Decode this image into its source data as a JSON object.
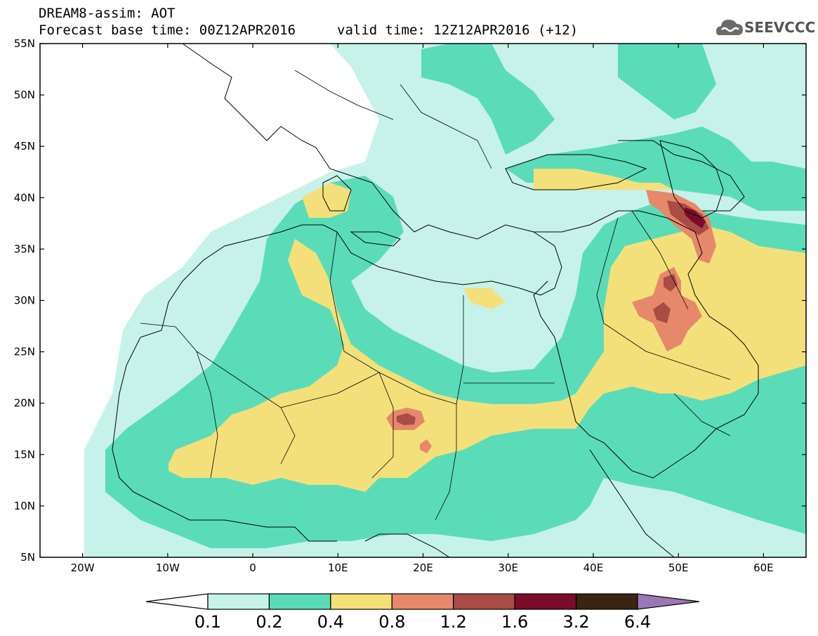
{
  "header": {
    "title": "DREAM8-assim: AOT",
    "base_time": "Forecast base time: 00Z12APR2016",
    "valid_time": "valid time: 12Z12APR2016 (+12)",
    "logo_text": "SEEVCCC"
  },
  "axes": {
    "lon_ticks": [
      "20W",
      "10W",
      "0",
      "10E",
      "20E",
      "30E",
      "40E",
      "50E",
      "60E"
    ],
    "lon_values": [
      -20,
      -10,
      0,
      10,
      20,
      30,
      40,
      50,
      60
    ],
    "lat_ticks": [
      "55N",
      "50N",
      "45N",
      "40N",
      "35N",
      "30N",
      "25N",
      "20N",
      "15N",
      "10N",
      "5N"
    ],
    "lat_values": [
      55,
      50,
      45,
      40,
      35,
      30,
      25,
      20,
      15,
      10,
      5
    ],
    "lon_range": [
      -25,
      65
    ],
    "lat_range": [
      5,
      55
    ]
  },
  "colorbar": {
    "labels": [
      "0.1",
      "0.2",
      "0.4",
      "0.8",
      "1.2",
      "1.6",
      "3.2",
      "6.4"
    ],
    "colors": [
      "#c6f2ea",
      "#5bdcb8",
      "#f3e07a",
      "#e6896a",
      "#aa4b46",
      "#7a0c2a",
      "#3a2412",
      "#9b78b5"
    ]
  },
  "chart_data": {
    "type": "heatmap",
    "variable": "AOT",
    "levels": [
      0.1,
      0.2,
      0.4,
      0.8,
      1.2,
      1.6,
      3.2,
      6.4
    ],
    "xlim": [
      -25,
      65
    ],
    "ylim": [
      5,
      55
    ]
  }
}
